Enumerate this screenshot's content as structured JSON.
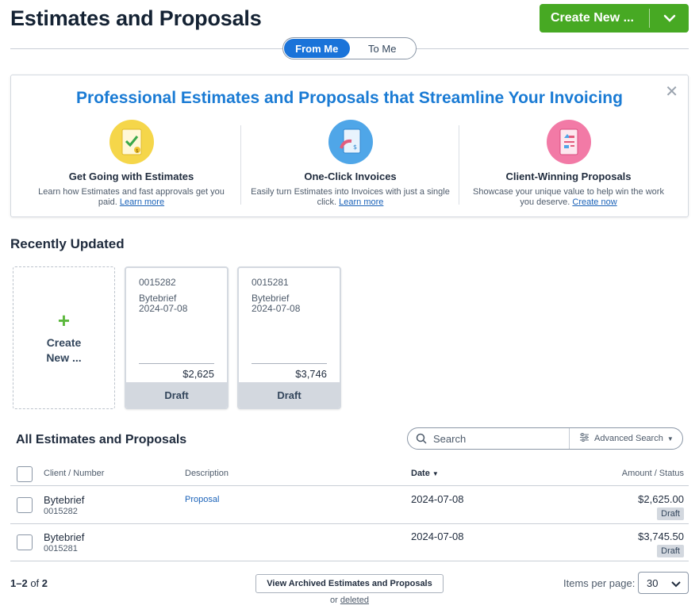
{
  "header": {
    "title": "Estimates and Proposals",
    "create_label": "Create New ...",
    "accent_color": "#47a923"
  },
  "toggle": {
    "options": [
      "From Me",
      "To Me"
    ],
    "selected": "From Me"
  },
  "promo": {
    "title": "Professional Estimates and Proposals that Streamline Your Invoicing",
    "columns": [
      {
        "icon": "estimate-document-icon",
        "heading": "Get Going with Estimates",
        "text": "Learn how Estimates and fast approvals get you paid.",
        "link": "Learn more"
      },
      {
        "icon": "invoice-document-icon",
        "heading": "One-Click Invoices",
        "text": "Easily turn Estimates into Invoices with just a single click.",
        "link": "Learn more"
      },
      {
        "icon": "proposal-document-icon",
        "heading": "Client-Winning Proposals",
        "text": "Showcase your unique value to help win the work you deserve.",
        "link": "Create now"
      }
    ]
  },
  "recent": {
    "title": "Recently Updated",
    "create_line1": "Create",
    "create_line2": "New ...",
    "cards": [
      {
        "number": "0015282",
        "client": "Bytebrief",
        "date": "2024-07-08",
        "amount": "$2,625",
        "status": "Draft"
      },
      {
        "number": "0015281",
        "client": "Bytebrief",
        "date": "2024-07-08",
        "amount": "$3,746",
        "status": "Draft"
      }
    ]
  },
  "list": {
    "title": "All Estimates and Proposals",
    "search_placeholder": "Search",
    "advanced_label": "Advanced Search",
    "columns": {
      "client": "Client / Number",
      "description": "Description",
      "date": "Date",
      "amount": "Amount / Status"
    },
    "rows": [
      {
        "client": "Bytebrief",
        "number": "0015282",
        "description": "Proposal",
        "date": "2024-07-08",
        "amount": "$2,625.00",
        "status": "Draft"
      },
      {
        "client": "Bytebrief",
        "number": "0015281",
        "description": "",
        "date": "2024-07-08",
        "amount": "$3,745.50",
        "status": "Draft"
      }
    ]
  },
  "footer": {
    "range": "1–2",
    "of_label": "of",
    "total": "2",
    "archived_label": "View Archived Estimates and Proposals",
    "or_label": "or",
    "deleted_label": "deleted",
    "items_per_page_label": "Items per page:",
    "items_per_page_value": "30"
  }
}
